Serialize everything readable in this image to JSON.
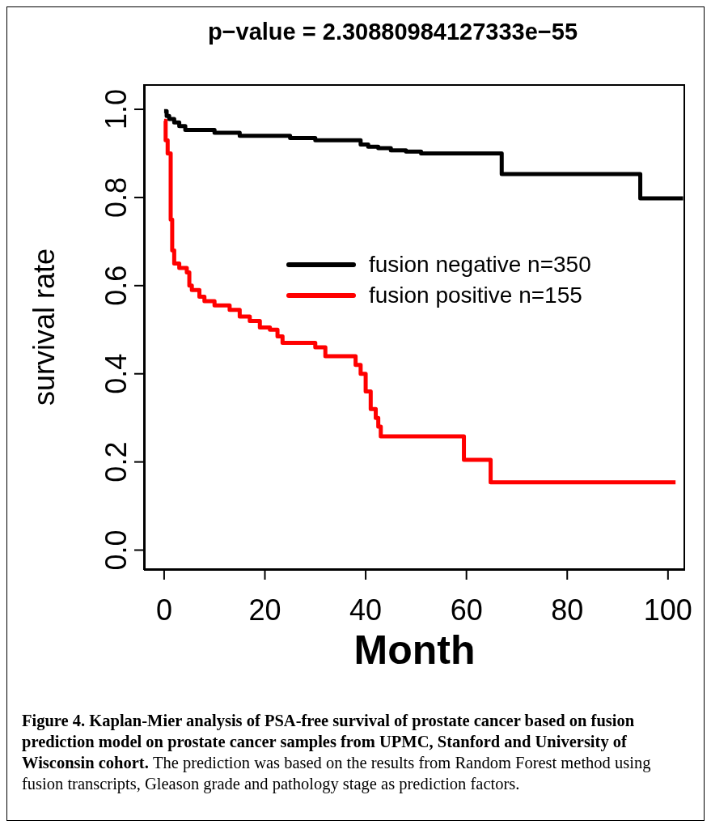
{
  "chart_data": {
    "type": "step",
    "title": "p−value = 2.30880984127333e−55",
    "xlabel": "Month",
    "ylabel": "survival rate",
    "xlim": [
      -4,
      103.4
    ],
    "xticks": [
      0,
      20,
      40,
      60,
      80,
      100
    ],
    "ylim": [
      -0.045,
      1.057
    ],
    "yticks": [
      {
        "value": 0,
        "label": "0.0"
      },
      0.2,
      0.4,
      0.6,
      0.8,
      {
        "value": 1,
        "label": "1.0"
      }
    ],
    "legend": "right",
    "series": [
      {
        "name": "fusion negative n=350",
        "color": "#000000",
        "x": [
          0,
          0.5,
          1,
          2,
          3,
          4.2,
          10,
          15,
          25,
          30,
          39,
          40.5,
          42.5,
          45,
          48,
          51,
          67,
          94.5,
          103
        ],
        "values": [
          0.996,
          0.985,
          0.978,
          0.97,
          0.962,
          0.953,
          0.947,
          0.94,
          0.935,
          0.93,
          0.92,
          0.915,
          0.912,
          0.907,
          0.904,
          0.9,
          0.853,
          0.798,
          0.798
        ]
      },
      {
        "name": "fusion positive n=155",
        "color": "#ff0000",
        "x": [
          0,
          0.3,
          0.7,
          1.3,
          1.6,
          2,
          3,
          4.5,
          5,
          5.5,
          7,
          8,
          10,
          13,
          15,
          17,
          19,
          21,
          22.5,
          23.5,
          30,
          32,
          38,
          39,
          40,
          41,
          42,
          42.5,
          43,
          59.5,
          64.8,
          101.5
        ],
        "values": [
          0.974,
          0.93,
          0.9,
          0.75,
          0.68,
          0.65,
          0.64,
          0.63,
          0.6,
          0.59,
          0.575,
          0.565,
          0.555,
          0.545,
          0.53,
          0.52,
          0.505,
          0.5,
          0.485,
          0.47,
          0.46,
          0.44,
          0.42,
          0.4,
          0.36,
          0.32,
          0.3,
          0.28,
          0.258,
          0.205,
          0.154,
          0.154
        ]
      }
    ],
    "annotations": [
      "Figure 4. Kaplan-Mier analysis of PSA-free survival of prostate cancer based on fusion prediction model on prostate cancer samples from UPMC, Stanford and University of Wisconsin cohort.",
      "The prediction was based on the results from Random Forest method using fusion transcripts, Gleason grade and pathology stage as prediction factors."
    ]
  }
}
